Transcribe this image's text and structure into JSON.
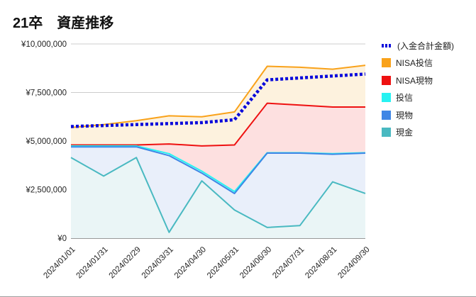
{
  "title": "21卒　資産推移",
  "chart_data": {
    "type": "area",
    "categories": [
      "2024/01/01",
      "2024/01/31",
      "2024/02/29",
      "2024/03/31",
      "2024/04/30",
      "2024/05/31",
      "2024/06/30",
      "2024/07/31",
      "2024/08/31",
      "2024/09/30"
    ],
    "ylim": [
      0,
      10000000
    ],
    "yticks": [
      0,
      2500000,
      5000000,
      7500000,
      10000000
    ],
    "ytick_labels": [
      "¥0",
      "¥2,500,000",
      "¥5,000,000",
      "¥7,500,000",
      "¥10,000,000"
    ],
    "grid": true,
    "legend_position": "right",
    "stacked_series": [
      {
        "name": "NISA投信",
        "color": "#f9a21a",
        "fill": "#fdf2de",
        "values": [
          5700000,
          5850000,
          6050000,
          6300000,
          6250000,
          6500000,
          8850000,
          8800000,
          8700000,
          8900000
        ]
      },
      {
        "name": "NISA現物",
        "color": "#ee1111",
        "fill": "#fde0e0",
        "values": [
          4800000,
          4800000,
          4800000,
          4850000,
          4750000,
          4800000,
          6950000,
          6850000,
          6750000,
          6750000
        ]
      },
      {
        "name": "投信",
        "color": "#27f2f2",
        "fill": "#e9effa",
        "values": [
          4750000,
          4750000,
          4750000,
          4350000,
          3450000,
          2400000,
          4400000,
          4400000,
          4350000,
          4400000
        ]
      },
      {
        "name": "現物",
        "color": "#3f86e5",
        "fill": "#e9effa",
        "values": [
          4700000,
          4700000,
          4700000,
          4250000,
          3350000,
          2300000,
          4380000,
          4380000,
          4320000,
          4380000
        ]
      },
      {
        "name": "現金",
        "color": "#49b9c1",
        "fill": "#eaf5f6",
        "values": [
          4150000,
          3200000,
          4150000,
          300000,
          2950000,
          1450000,
          550000,
          650000,
          2900000,
          2300000
        ]
      }
    ],
    "line_series": {
      "name": "(入金合計金額)",
      "color": "#0a0adb",
      "style": "dotted",
      "values": [
        5750000,
        5800000,
        5850000,
        5900000,
        5950000,
        6100000,
        8150000,
        8250000,
        8350000,
        8450000
      ]
    }
  },
  "legend": [
    {
      "label": "(入金合計金額)",
      "color": "#0a0adb",
      "kind": "dots"
    },
    {
      "label": "NISA投信",
      "color": "#f9a21a",
      "kind": "box"
    },
    {
      "label": "NISA現物",
      "color": "#ee1111",
      "kind": "box"
    },
    {
      "label": "投信",
      "color": "#27f2f2",
      "kind": "box"
    },
    {
      "label": "現物",
      "color": "#3f86e5",
      "kind": "box"
    },
    {
      "label": "現金",
      "color": "#49b9c1",
      "kind": "box"
    }
  ]
}
